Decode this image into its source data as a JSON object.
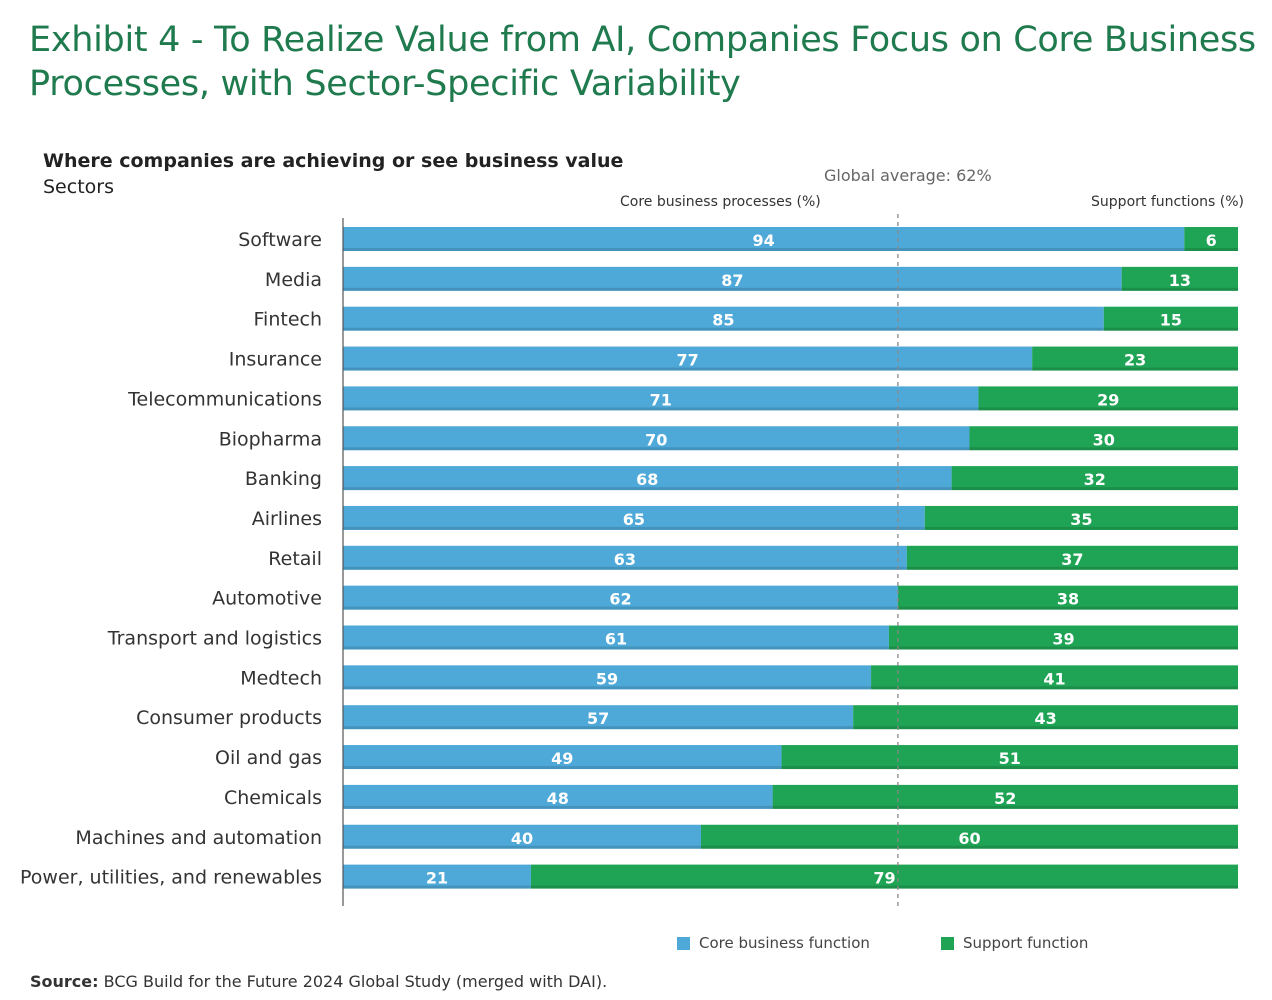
{
  "title_line1": "Exhibit 4 - To Realize Value from AI, Companies Focus on Core Business",
  "title_line2": "Processes, with Sector-Specific Variability",
  "subtitle": "Where companies are achieving or see business value",
  "subtitle2": "Sectors",
  "global_avg_label": "Global average: 62%",
  "core_header": "Core business processes (%)",
  "support_header": "Support functions (%)",
  "legend": {
    "core": "Core business function",
    "support": "Support function"
  },
  "source_label": "Source:",
  "source_text": " BCG Build for the Future 2024 Global Study (merged with DAI).",
  "colors": {
    "core": "#4ea8d8",
    "support": "#1fa354",
    "title": "#1f7a4e"
  },
  "chart_data": {
    "type": "bar",
    "orientation": "horizontal",
    "stacked": true,
    "categories": [
      "Software",
      "Media",
      "Fintech",
      "Insurance",
      "Telecommunications",
      "Biopharma",
      "Banking",
      "Airlines",
      "Retail",
      "Automotive",
      "Transport and logistics",
      "Medtech",
      "Consumer products",
      "Oil and gas",
      "Chemicals",
      "Machines and automation",
      "Power, utilities, and renewables"
    ],
    "series": [
      {
        "name": "Core business function",
        "values": [
          94,
          87,
          85,
          77,
          71,
          70,
          68,
          65,
          63,
          62,
          61,
          59,
          57,
          49,
          48,
          40,
          21
        ]
      },
      {
        "name": "Support function",
        "values": [
          6,
          13,
          15,
          23,
          29,
          30,
          32,
          35,
          37,
          38,
          39,
          41,
          43,
          51,
          52,
          60,
          79
        ]
      }
    ],
    "reference_line": {
      "value": 62,
      "label": "Global average: 62%"
    },
    "xlim": [
      0,
      100
    ],
    "legend_position": "bottom"
  }
}
